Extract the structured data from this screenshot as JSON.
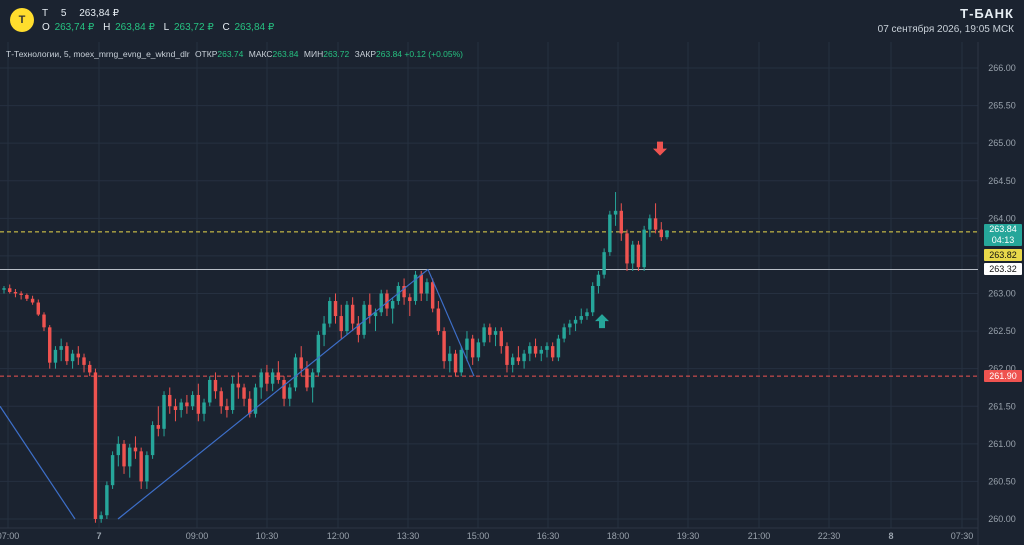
{
  "header": {
    "logo_text": "Т",
    "ticker": "T",
    "interval": "5",
    "last_price": "263,84 ₽",
    "ohlc": {
      "o_label": "O",
      "o_value": "263,74 ₽",
      "h_label": "H",
      "h_value": "263,84 ₽",
      "l_label": "L",
      "l_value": "263,72 ₽",
      "c_label": "C",
      "c_value": "263,84 ₽"
    },
    "brand": "Т-БАНК",
    "datetime": "07 сентября 2026, 19:05 МСК"
  },
  "infobar": {
    "title": "Т-Технологии, 5, moex_mrng_evng_e_wknd_dlr",
    "open_label": "ОТКР",
    "open_value": "263.74",
    "high_label": "МАКС",
    "high_value": "263.84",
    "low_label": "МИН",
    "low_value": "263.72",
    "close_label": "ЗАКР",
    "close_value": "263.84",
    "change": "+0.12 (+0.05%)"
  },
  "price_tags": {
    "current": "263.84",
    "countdown": "04:13",
    "yellow": "263.82",
    "white": "263.32",
    "red": "261.90"
  },
  "colors": {
    "background": "#1b2330",
    "up": "#26a69a",
    "down": "#ef5350",
    "grid": "#263040",
    "trend_line": "#3d6fc9",
    "yellow_line": "#e8d84a",
    "red_line": "#ef5350",
    "white_line": "#b8bec7",
    "arrow_up": "#26a69a",
    "arrow_down": "#ef5350"
  },
  "chart_data": {
    "type": "candlestick",
    "y_ticks": [
      "266.00",
      "265.50",
      "265.00",
      "264.50",
      "264.00",
      "263.50",
      "263.00",
      "262.50",
      "262.00",
      "261.50",
      "261.00",
      "260.50",
      "260.00"
    ],
    "x_ticks": [
      "07:00",
      "7",
      "09:00",
      "10:30",
      "12:00",
      "13:30",
      "15:00",
      "16:30",
      "18:00",
      "19:30",
      "21:00",
      "22:30",
      "8",
      "07:30"
    ],
    "ylim": [
      259.95,
      266.2
    ],
    "horizontal_levels": {
      "yellow_dashed": 263.82,
      "red_dashed": 261.9,
      "white_solid": 263.32
    },
    "trend_lines": [
      [
        [
          0,
          261.5
        ],
        [
          75,
          260.0
        ]
      ],
      [
        [
          118,
          260.0
        ],
        [
          428,
          263.32
        ]
      ],
      [
        [
          428,
          263.32
        ],
        [
          474,
          261.9
        ]
      ]
    ],
    "arrows": [
      {
        "type": "buy",
        "x": 602,
        "y": 262.62
      },
      {
        "type": "sell",
        "x": 660,
        "y": 264.94
      }
    ],
    "candles": [
      [
        263.05,
        263.1,
        263.0,
        263.07
      ],
      [
        263.07,
        263.12,
        263.0,
        263.02
      ],
      [
        263.02,
        263.06,
        262.95,
        263.0
      ],
      [
        263.0,
        263.03,
        262.92,
        262.98
      ],
      [
        262.98,
        263.0,
        262.9,
        262.93
      ],
      [
        262.93,
        262.97,
        262.85,
        262.88
      ],
      [
        262.88,
        262.92,
        262.7,
        262.72
      ],
      [
        262.72,
        262.75,
        262.5,
        262.55
      ],
      [
        262.55,
        262.58,
        262.0,
        262.08
      ],
      [
        262.08,
        262.3,
        262.0,
        262.25
      ],
      [
        262.25,
        262.4,
        262.1,
        262.3
      ],
      [
        262.3,
        262.35,
        262.05,
        262.1
      ],
      [
        262.1,
        262.25,
        262.0,
        262.2
      ],
      [
        262.2,
        262.3,
        262.05,
        262.15
      ],
      [
        262.15,
        262.2,
        261.95,
        262.05
      ],
      [
        262.05,
        262.1,
        261.9,
        261.95
      ],
      [
        261.95,
        262.0,
        259.95,
        260.0
      ],
      [
        260.0,
        260.1,
        259.95,
        260.05
      ],
      [
        260.05,
        260.5,
        260.0,
        260.45
      ],
      [
        260.45,
        260.9,
        260.4,
        260.85
      ],
      [
        260.85,
        261.1,
        260.7,
        261.0
      ],
      [
        261.0,
        261.05,
        260.6,
        260.7
      ],
      [
        260.7,
        261.0,
        260.55,
        260.95
      ],
      [
        260.95,
        261.1,
        260.8,
        260.9
      ],
      [
        260.9,
        260.95,
        260.4,
        260.5
      ],
      [
        260.5,
        260.9,
        260.4,
        260.85
      ],
      [
        260.85,
        261.3,
        260.8,
        261.25
      ],
      [
        261.25,
        261.5,
        261.1,
        261.2
      ],
      [
        261.2,
        261.7,
        261.1,
        261.65
      ],
      [
        261.65,
        261.75,
        261.4,
        261.5
      ],
      [
        261.5,
        261.6,
        261.3,
        261.45
      ],
      [
        261.45,
        261.6,
        261.35,
        261.55
      ],
      [
        261.55,
        261.65,
        261.4,
        261.5
      ],
      [
        261.5,
        261.7,
        261.45,
        261.65
      ],
      [
        261.65,
        261.8,
        261.3,
        261.4
      ],
      [
        261.4,
        261.6,
        261.3,
        261.55
      ],
      [
        261.55,
        261.9,
        261.5,
        261.85
      ],
      [
        261.85,
        261.95,
        261.6,
        261.7
      ],
      [
        261.7,
        261.75,
        261.4,
        261.5
      ],
      [
        261.5,
        261.6,
        261.35,
        261.45
      ],
      [
        261.45,
        261.9,
        261.4,
        261.8
      ],
      [
        261.8,
        261.95,
        261.6,
        261.75
      ],
      [
        261.75,
        261.8,
        261.5,
        261.6
      ],
      [
        261.6,
        261.7,
        261.35,
        261.4
      ],
      [
        261.4,
        261.8,
        261.35,
        261.75
      ],
      [
        261.75,
        262.0,
        261.6,
        261.95
      ],
      [
        261.95,
        262.05,
        261.7,
        261.8
      ],
      [
        261.8,
        262.0,
        261.7,
        261.95
      ],
      [
        261.95,
        262.1,
        261.8,
        261.85
      ],
      [
        261.85,
        261.9,
        261.5,
        261.6
      ],
      [
        261.6,
        261.8,
        261.5,
        261.75
      ],
      [
        261.75,
        262.2,
        261.7,
        262.15
      ],
      [
        262.15,
        262.3,
        261.9,
        262.0
      ],
      [
        262.0,
        262.1,
        261.7,
        261.75
      ],
      [
        261.75,
        262.0,
        261.55,
        261.95
      ],
      [
        261.95,
        262.5,
        261.9,
        262.45
      ],
      [
        262.45,
        262.7,
        262.3,
        262.6
      ],
      [
        262.6,
        262.95,
        262.55,
        262.9
      ],
      [
        262.9,
        263.0,
        262.6,
        262.7
      ],
      [
        262.7,
        262.85,
        262.4,
        262.5
      ],
      [
        262.5,
        262.9,
        262.45,
        262.85
      ],
      [
        262.85,
        262.95,
        262.5,
        262.6
      ],
      [
        262.6,
        262.7,
        262.35,
        262.45
      ],
      [
        262.45,
        262.9,
        262.4,
        262.85
      ],
      [
        262.85,
        263.0,
        262.6,
        262.7
      ],
      [
        262.7,
        262.8,
        262.5,
        262.75
      ],
      [
        262.75,
        263.05,
        262.7,
        263.0
      ],
      [
        263.0,
        263.05,
        262.7,
        262.8
      ],
      [
        262.8,
        262.95,
        262.6,
        262.9
      ],
      [
        262.9,
        263.15,
        262.85,
        263.1
      ],
      [
        263.1,
        263.2,
        262.85,
        262.95
      ],
      [
        262.95,
        263.0,
        262.7,
        262.9
      ],
      [
        262.9,
        263.3,
        262.85,
        263.25
      ],
      [
        263.25,
        263.3,
        262.9,
        263.0
      ],
      [
        263.0,
        263.2,
        262.9,
        263.15
      ],
      [
        263.15,
        263.2,
        262.75,
        262.8
      ],
      [
        262.8,
        262.9,
        262.45,
        262.5
      ],
      [
        262.5,
        262.55,
        262.0,
        262.1
      ],
      [
        262.1,
        262.3,
        261.95,
        262.2
      ],
      [
        262.2,
        262.25,
        261.9,
        261.95
      ],
      [
        261.95,
        262.3,
        261.9,
        262.25
      ],
      [
        262.25,
        262.5,
        262.1,
        262.4
      ],
      [
        262.4,
        262.45,
        262.05,
        262.15
      ],
      [
        262.15,
        262.4,
        262.1,
        262.35
      ],
      [
        262.35,
        262.6,
        262.3,
        262.55
      ],
      [
        262.55,
        262.6,
        262.35,
        262.45
      ],
      [
        262.45,
        262.55,
        262.3,
        262.5
      ],
      [
        262.5,
        262.55,
        262.2,
        262.3
      ],
      [
        262.3,
        262.35,
        261.95,
        262.05
      ],
      [
        262.05,
        262.2,
        261.95,
        262.15
      ],
      [
        262.15,
        262.3,
        262.05,
        262.1
      ],
      [
        262.1,
        262.25,
        262.0,
        262.2
      ],
      [
        262.2,
        262.35,
        262.1,
        262.3
      ],
      [
        262.3,
        262.4,
        262.15,
        262.2
      ],
      [
        262.2,
        262.3,
        262.1,
        262.25
      ],
      [
        262.25,
        262.35,
        262.15,
        262.3
      ],
      [
        262.3,
        262.35,
        262.1,
        262.15
      ],
      [
        262.15,
        262.45,
        262.1,
        262.4
      ],
      [
        262.4,
        262.6,
        262.35,
        262.55
      ],
      [
        262.55,
        262.65,
        262.45,
        262.6
      ],
      [
        262.6,
        262.7,
        262.5,
        262.65
      ],
      [
        262.65,
        262.8,
        262.6,
        262.7
      ],
      [
        262.7,
        262.8,
        262.65,
        262.75
      ],
      [
        262.75,
        263.15,
        262.7,
        263.1
      ],
      [
        263.1,
        263.3,
        263.0,
        263.25
      ],
      [
        263.25,
        263.6,
        263.2,
        263.55
      ],
      [
        263.55,
        264.1,
        263.5,
        264.05
      ],
      [
        264.05,
        264.35,
        263.9,
        264.1
      ],
      [
        264.1,
        264.2,
        263.7,
        263.8
      ],
      [
        263.8,
        263.85,
        263.3,
        263.4
      ],
      [
        263.4,
        263.7,
        263.3,
        263.65
      ],
      [
        263.65,
        263.7,
        263.3,
        263.35
      ],
      [
        263.35,
        263.9,
        263.3,
        263.85
      ],
      [
        263.85,
        264.05,
        263.75,
        264.0
      ],
      [
        264.0,
        264.2,
        263.8,
        263.85
      ],
      [
        263.85,
        263.95,
        263.7,
        263.75
      ],
      [
        263.75,
        263.84,
        263.72,
        263.84
      ]
    ]
  }
}
